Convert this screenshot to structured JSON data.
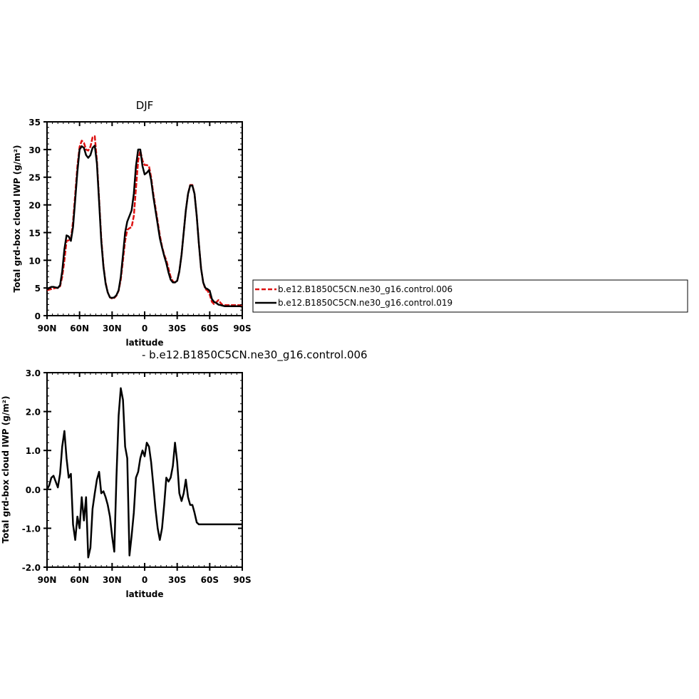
{
  "chart_data": [
    {
      "type": "line",
      "title": "DJF",
      "xlabel": "latitude",
      "ylabel": "Total grd-box cloud IWP (g/m²)",
      "xlim": [
        90,
        -90
      ],
      "ylim": [
        0,
        35
      ],
      "x_ticks": [
        90,
        60,
        30,
        0,
        -30,
        -60,
        -90
      ],
      "x_ticklabels": [
        "90N",
        "60N",
        "30N",
        "0",
        "30S",
        "60S",
        "90S"
      ],
      "y_ticks": [
        0,
        5,
        10,
        15,
        20,
        25,
        30,
        35
      ],
      "y_ticklabels": [
        "0",
        "5",
        "10",
        "15",
        "20",
        "25",
        "30",
        "35"
      ],
      "legend_position": "right, outside plot",
      "series": [
        {
          "name": "b.e12.B1850C5CN.ne30_g16.control.006",
          "color": "#dd1111",
          "dash": "dashed",
          "x": [
            90,
            88,
            86,
            84,
            82,
            80,
            78,
            76,
            74,
            72,
            70,
            68,
            66,
            64,
            62,
            60,
            58,
            56,
            54,
            52,
            50,
            48,
            46,
            44,
            42,
            40,
            38,
            36,
            34,
            32,
            30,
            28,
            26,
            24,
            22,
            20,
            18,
            16,
            14,
            12,
            10,
            8,
            6,
            4,
            2,
            0,
            -2,
            -4,
            -6,
            -8,
            -10,
            -12,
            -14,
            -16,
            -18,
            -20,
            -22,
            -24,
            -26,
            -28,
            -30,
            -32,
            -34,
            -36,
            -38,
            -40,
            -42,
            -44,
            -46,
            -48,
            -50,
            -52,
            -54,
            -56,
            -58,
            -60,
            -62,
            -64,
            -66,
            -68,
            -70,
            -72,
            -74,
            -76,
            -78,
            -80,
            -82,
            -84,
            -86,
            -88,
            -90
          ],
          "y": [
            4.6,
            4.7,
            4.8,
            4.9,
            5,
            5,
            5.3,
            7,
            10,
            13.5,
            13.6,
            13.8,
            17,
            22,
            27,
            30.5,
            31.6,
            31.2,
            30,
            29.8,
            30.5,
            32.2,
            32.4,
            28,
            21,
            14,
            9,
            6,
            4.2,
            3.3,
            3.1,
            3.2,
            3.6,
            4.5,
            6.5,
            10,
            13.5,
            15.5,
            15.8,
            16,
            18,
            23,
            28,
            29.8,
            28,
            27.2,
            27.2,
            27,
            25,
            22,
            19.5,
            17,
            14.5,
            12.5,
            11,
            10,
            8.5,
            7,
            6.2,
            6,
            6.3,
            8,
            11,
            15,
            19,
            22,
            23.6,
            23.6,
            22,
            18,
            13,
            8.5,
            6,
            4.8,
            4.5,
            3.8,
            2.5,
            2.1,
            2.4,
            2.8,
            2.3,
            1.9,
            1.9,
            1.9,
            1.9,
            1.9,
            1.9,
            1.9,
            1.9,
            1.9,
            1.9
          ]
        },
        {
          "name": "b.e12.B1850C5CN.ne30_g16.control.019",
          "color": "#000000",
          "dash": "solid",
          "x": [
            90,
            88,
            86,
            84,
            82,
            80,
            78,
            76,
            74,
            72,
            70,
            68,
            66,
            64,
            62,
            60,
            58,
            56,
            54,
            52,
            50,
            48,
            46,
            44,
            42,
            40,
            38,
            36,
            34,
            32,
            30,
            28,
            26,
            24,
            22,
            20,
            18,
            16,
            14,
            12,
            10,
            8,
            6,
            4,
            2,
            0,
            -2,
            -4,
            -6,
            -8,
            -10,
            -12,
            -14,
            -16,
            -18,
            -20,
            -22,
            -24,
            -26,
            -28,
            -30,
            -32,
            -34,
            -36,
            -38,
            -40,
            -42,
            -44,
            -46,
            -48,
            -50,
            -52,
            -54,
            -56,
            -58,
            -60,
            -62,
            -64,
            -66,
            -68,
            -70,
            -72,
            -74,
            -76,
            -78,
            -80,
            -82,
            -84,
            -86,
            -88,
            -90
          ],
          "y": [
            4.7,
            5.0,
            5.2,
            5.2,
            5.1,
            5,
            5.5,
            8,
            12,
            14.5,
            14.3,
            13.5,
            16,
            21,
            26,
            30,
            30.6,
            30.3,
            29,
            28.5,
            29,
            30.3,
            30.7,
            27.5,
            20.5,
            13.5,
            8.8,
            5.8,
            4.2,
            3.3,
            3.2,
            3.3,
            3.7,
            4.6,
            7,
            11,
            15,
            17,
            18,
            19,
            22,
            27,
            30,
            30,
            27,
            25.5,
            25.8,
            26.3,
            24.5,
            21.5,
            19,
            16.5,
            14,
            12.3,
            10.8,
            9.5,
            7.8,
            6.5,
            6,
            6,
            6.3,
            8,
            11,
            15,
            19,
            22,
            23.5,
            23.5,
            22,
            18,
            13,
            8.5,
            6,
            5,
            4.8,
            4.5,
            3,
            2.5,
            2.3,
            2,
            1.9,
            1.8,
            1.7,
            1.7,
            1.7,
            1.7,
            1.7,
            1.7,
            1.7,
            1.7,
            1.6
          ]
        }
      ]
    },
    {
      "type": "line",
      "title": "- b.e12.B1850C5CN.ne30_g16.control.006",
      "xlabel": "latitude",
      "ylabel": "Total grd-box cloud IWP (g/m²)",
      "xlim": [
        90,
        -90
      ],
      "ylim": [
        -2.0,
        3.0
      ],
      "x_ticks": [
        90,
        60,
        30,
        0,
        -30,
        -60,
        -90
      ],
      "x_ticklabels": [
        "90N",
        "60N",
        "30N",
        "0",
        "30S",
        "60S",
        "90S"
      ],
      "y_ticks": [
        -2,
        -1,
        0,
        1,
        2,
        3
      ],
      "y_ticklabels": [
        "-2.0",
        "-1.0",
        "0.0",
        "1.0",
        "2.0",
        "3.0"
      ],
      "series": [
        {
          "color": "#000000",
          "dash": "solid",
          "x": [
            90,
            88,
            86,
            84,
            82,
            80,
            78,
            76,
            74,
            72,
            70,
            68,
            66,
            64,
            62,
            60,
            58,
            56,
            54,
            52,
            50,
            48,
            46,
            44,
            42,
            40,
            38,
            36,
            34,
            32,
            30,
            28,
            26,
            24,
            22,
            20,
            18,
            16,
            14,
            12,
            10,
            8,
            6,
            4,
            2,
            0,
            -2,
            -4,
            -6,
            -8,
            -10,
            -12,
            -14,
            -16,
            -18,
            -20,
            -22,
            -24,
            -26,
            -28,
            -30,
            -32,
            -34,
            -36,
            -38,
            -40,
            -42,
            -44,
            -46,
            -48,
            -50,
            -52,
            -54,
            -56,
            -58,
            -60,
            -62,
            -64,
            -66,
            -68,
            -70,
            -72,
            -74,
            -76,
            -78,
            -80,
            -82,
            -84,
            -86,
            -88,
            -90
          ],
          "y": [
            0,
            0.1,
            0.3,
            0.35,
            0.2,
            0.05,
            0.4,
            1.1,
            1.5,
            0.8,
            0.3,
            0.4,
            -0.9,
            -1.3,
            -0.7,
            -1.0,
            -0.2,
            -0.8,
            -0.2,
            -1.75,
            -1.5,
            -0.5,
            -0.1,
            0.25,
            0.45,
            -0.1,
            -0.05,
            -0.2,
            -0.4,
            -0.7,
            -1.2,
            -1.6,
            0.3,
            1.9,
            2.6,
            2.3,
            1.1,
            0.8,
            -1.7,
            -1.2,
            -0.6,
            0.3,
            0.45,
            0.8,
            1.0,
            0.85,
            1.2,
            1.1,
            0.7,
            0.1,
            -0.5,
            -1.0,
            -1.3,
            -1.0,
            -0.4,
            0.3,
            0.2,
            0.3,
            0.6,
            1.2,
            0.7,
            -0.1,
            -0.3,
            -0.1,
            0.25,
            -0.2,
            -0.4,
            -0.4,
            -0.6,
            -0.85,
            -0.9,
            -0.9,
            -0.9,
            -0.9,
            -0.9,
            -0.9,
            -0.9,
            -0.9,
            -0.9,
            -0.9,
            -0.9,
            -0.9,
            -0.9,
            -0.9,
            -0.9,
            -0.9,
            -0.9,
            -0.9,
            -0.9,
            -0.9,
            -0.9
          ]
        }
      ]
    }
  ]
}
